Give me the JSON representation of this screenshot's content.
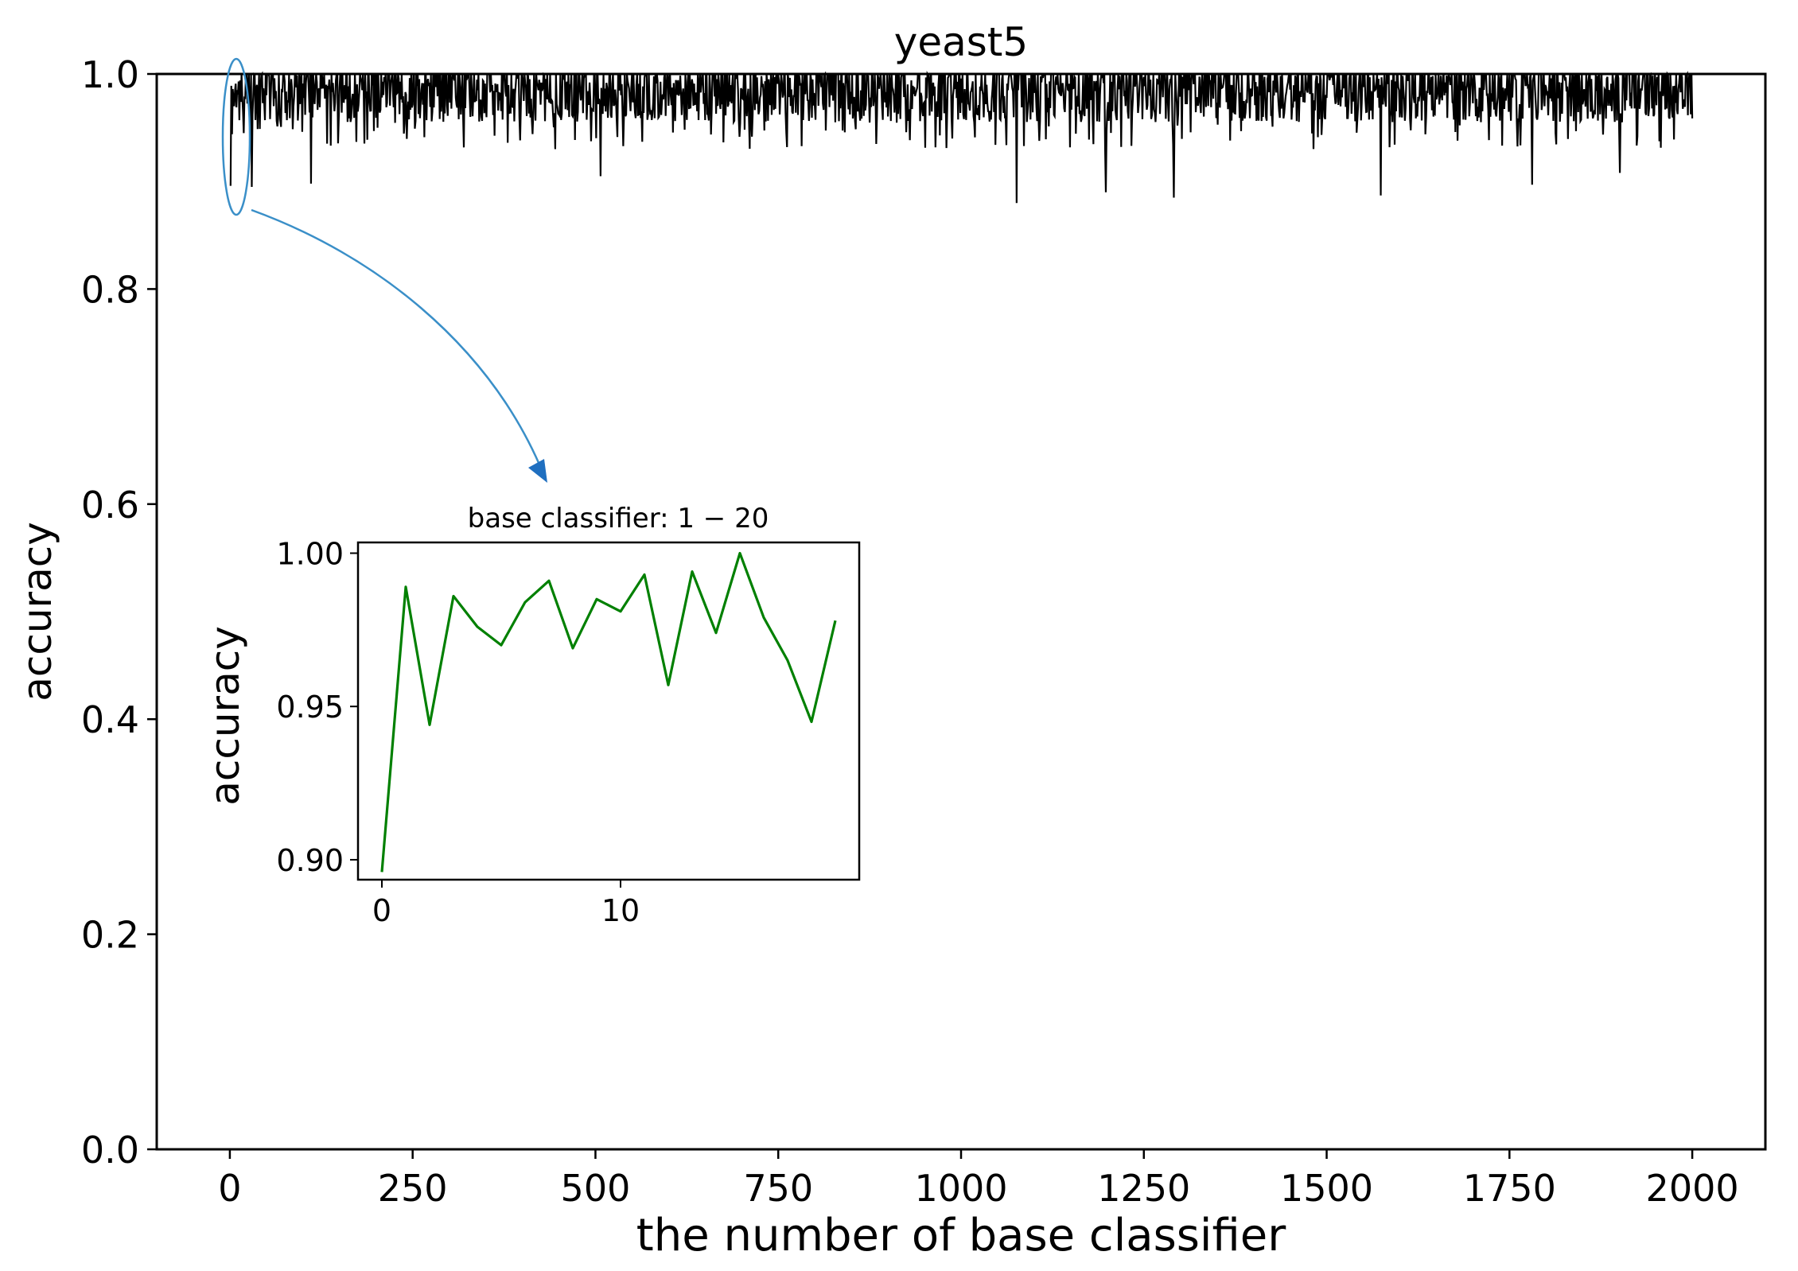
{
  "chart_data": [
    {
      "type": "line",
      "title": "yeast5",
      "xlabel": "the number of base classifier",
      "ylabel": "accuracy",
      "xlim": [
        -100,
        2100
      ],
      "ylim": [
        0.0,
        1.0
      ],
      "xticks": [
        0,
        250,
        500,
        750,
        1000,
        1250,
        1500,
        1750,
        2000
      ],
      "xtick_labels": [
        "0",
        "250",
        "500",
        "750",
        "1000",
        "1250",
        "1500",
        "1750",
        "2000"
      ],
      "yticks": [
        0.0,
        0.2,
        0.4,
        0.6,
        0.8,
        1.0
      ],
      "ytick_labels": [
        "0.0",
        "0.2",
        "0.4",
        "0.6",
        "0.8",
        "1.0"
      ],
      "grid": false,
      "series": [
        {
          "color": "#000000",
          "n_points": 2000,
          "value_range": [
            0.88,
            1.0
          ],
          "typical_range": [
            0.93,
            1.0
          ],
          "values_1_20": [
            0.896,
            0.989,
            0.944,
            0.986,
            0.976,
            0.97,
            0.984,
            0.991,
            0.969,
            0.985,
            0.981,
            0.993,
            0.957,
            0.994,
            0.974,
            1.0,
            0.979,
            0.965,
            0.945,
            0.978
          ],
          "notable_dips": [
            {
              "x": 30,
              "y": 0.895
            },
            {
              "x": 111,
              "y": 0.898
            },
            {
              "x": 507,
              "y": 0.905
            },
            {
              "x": 1076,
              "y": 0.88
            },
            {
              "x": 1198,
              "y": 0.89
            },
            {
              "x": 1291,
              "y": 0.885
            },
            {
              "x": 1574,
              "y": 0.887
            },
            {
              "x": 1781,
              "y": 0.897
            },
            {
              "x": 1901,
              "y": 0.908
            }
          ]
        }
      ],
      "annotation": {
        "highlight_x_range": [
          1,
          20
        ],
        "target": "inset"
      }
    },
    {
      "type": "line",
      "title": "base classifier: 1 − 20",
      "xlabel": "",
      "ylabel": "accuracy",
      "xlim": [
        -1,
        20
      ],
      "ylim": [
        0.8935,
        1.0035
      ],
      "xticks": [
        0,
        10
      ],
      "xtick_labels": [
        "0",
        "10"
      ],
      "yticks": [
        0.9,
        0.95,
        1.0
      ],
      "ytick_labels": [
        "0.90",
        "0.95",
        "1.00"
      ],
      "series": [
        {
          "color": "#008000",
          "x": [
            0,
            1,
            2,
            3,
            4,
            5,
            6,
            7,
            8,
            9,
            10,
            11,
            12,
            13,
            14,
            15,
            16,
            17,
            18,
            19
          ],
          "values": [
            0.896,
            0.989,
            0.944,
            0.986,
            0.976,
            0.97,
            0.984,
            0.991,
            0.969,
            0.985,
            0.981,
            0.993,
            0.957,
            0.994,
            0.974,
            1.0,
            0.979,
            0.965,
            0.945,
            0.978
          ]
        }
      ]
    }
  ]
}
